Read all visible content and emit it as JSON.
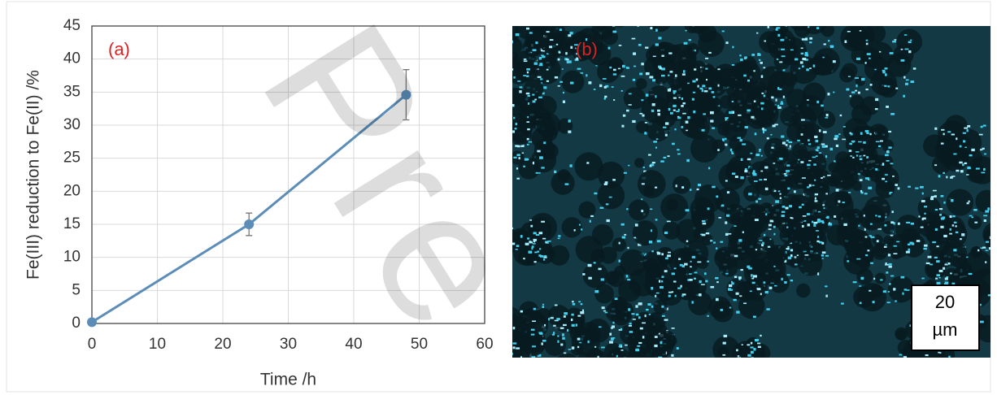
{
  "chart_data": {
    "type": "line",
    "x_label": "Time /h",
    "y_label": "Fe(III) reduction to Fe(II) /%",
    "x": [
      0,
      24,
      48
    ],
    "values": [
      0.2,
      15,
      34.6
    ],
    "errors": [
      0,
      1.7,
      3.8
    ],
    "color": "#5b8db8",
    "xlim": [
      0,
      60
    ],
    "xticks": [
      0,
      10,
      20,
      30,
      40,
      50,
      60
    ],
    "ylim": [
      0,
      45
    ],
    "yticks": [
      0,
      5,
      10,
      15,
      20,
      25,
      30,
      35,
      40,
      45
    ],
    "grid": true
  },
  "panel_labels": [
    "(a)",
    "(b)"
  ],
  "scale_bar": [
    "20",
    "µm"
  ],
  "watermark": "Pre"
}
